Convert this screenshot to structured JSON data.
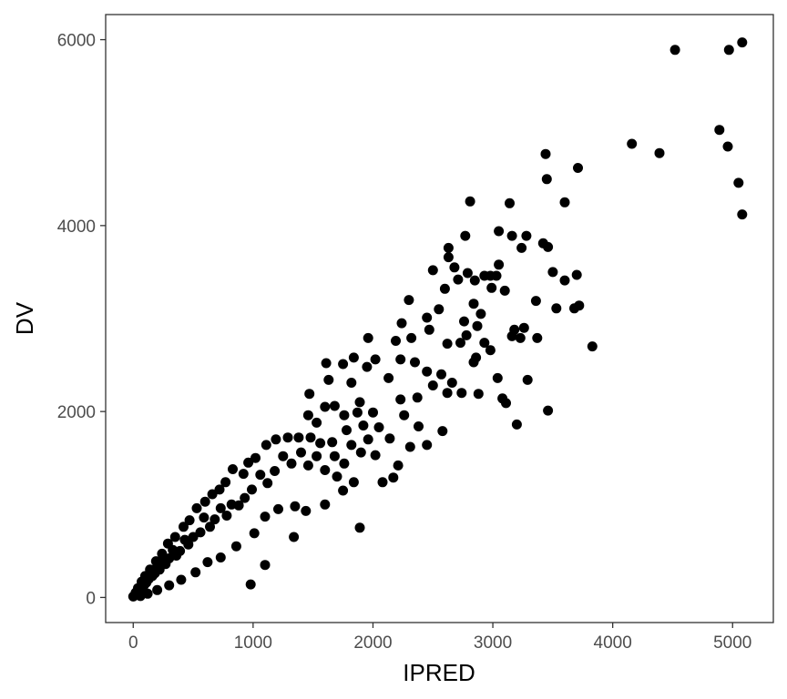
{
  "chart_data": {
    "type": "scatter",
    "xlabel": "IPRED",
    "ylabel": "DV",
    "xlim": [
      -230,
      5340
    ],
    "ylim": [
      -270,
      6270
    ],
    "x_ticks": [
      0,
      1000,
      2000,
      3000,
      4000,
      5000
    ],
    "y_ticks": [
      0,
      2000,
      4000,
      6000
    ],
    "x_tick_labels": [
      "0",
      "1000",
      "2000",
      "3000",
      "4000",
      "5000"
    ],
    "y_tick_labels": [
      "0",
      "2000",
      "4000",
      "6000"
    ],
    "grid": false,
    "legend": "none",
    "point_color": "#000000",
    "points": [
      [
        5080,
        5970
      ],
      [
        4520,
        5890
      ],
      [
        4970,
        5890
      ],
      [
        4890,
        5030
      ],
      [
        4960,
        4850
      ],
      [
        4160,
        4880
      ],
      [
        4390,
        4780
      ],
      [
        5050,
        4460
      ],
      [
        5080,
        4120
      ],
      [
        3440,
        4770
      ],
      [
        3450,
        4500
      ],
      [
        3710,
        4620
      ],
      [
        3600,
        4250
      ],
      [
        3140,
        4240
      ],
      [
        2810,
        4260
      ],
      [
        3050,
        3940
      ],
      [
        3160,
        3890
      ],
      [
        3280,
        3890
      ],
      [
        3240,
        3760
      ],
      [
        3420,
        3810
      ],
      [
        3460,
        3770
      ],
      [
        2630,
        3760
      ],
      [
        2630,
        3660
      ],
      [
        2770,
        3890
      ],
      [
        3700,
        3470
      ],
      [
        3500,
        3500
      ],
      [
        3600,
        3410
      ],
      [
        3530,
        3110
      ],
      [
        3680,
        3110
      ],
      [
        3720,
        3140
      ],
      [
        3360,
        3190
      ],
      [
        3830,
        2700
      ],
      [
        3460,
        2010
      ],
      [
        3200,
        1860
      ],
      [
        3290,
        2340
      ],
      [
        3040,
        2360
      ],
      [
        3080,
        2140
      ],
      [
        3110,
        2090
      ],
      [
        3050,
        3580
      ],
      [
        2980,
        3460
      ],
      [
        2930,
        3460
      ],
      [
        3030,
        3460
      ],
      [
        2990,
        3330
      ],
      [
        3100,
        3300
      ],
      [
        3180,
        2880
      ],
      [
        3160,
        2810
      ],
      [
        3260,
        2900
      ],
      [
        3230,
        2790
      ],
      [
        3370,
        2790
      ],
      [
        2850,
        3410
      ],
      [
        2710,
        3420
      ],
      [
        2790,
        3490
      ],
      [
        2680,
        3550
      ],
      [
        2500,
        3520
      ],
      [
        2300,
        3200
      ],
      [
        2450,
        3010
      ],
      [
        2550,
        3100
      ],
      [
        2600,
        3320
      ],
      [
        2760,
        2970
      ],
      [
        2840,
        3160
      ],
      [
        2900,
        3050
      ],
      [
        2870,
        2920
      ],
      [
        2930,
        2740
      ],
      [
        2980,
        2660
      ],
      [
        2860,
        2580
      ],
      [
        2730,
        2740
      ],
      [
        2840,
        2530
      ],
      [
        2780,
        2820
      ],
      [
        2620,
        2730
      ],
      [
        2470,
        2880
      ],
      [
        2320,
        2790
      ],
      [
        2240,
        2950
      ],
      [
        2190,
        2760
      ],
      [
        2230,
        2560
      ],
      [
        2350,
        2530
      ],
      [
        2450,
        2430
      ],
      [
        2570,
        2400
      ],
      [
        2660,
        2310
      ],
      [
        2740,
        2200
      ],
      [
        2880,
        2190
      ],
      [
        2620,
        2200
      ],
      [
        2500,
        2280
      ],
      [
        2370,
        2150
      ],
      [
        2230,
        2130
      ],
      [
        2260,
        1960
      ],
      [
        2380,
        1840
      ],
      [
        2580,
        1790
      ],
      [
        2310,
        1620
      ],
      [
        2450,
        1640
      ],
      [
        2210,
        1420
      ],
      [
        2080,
        1240
      ],
      [
        2170,
        1290
      ],
      [
        2020,
        1530
      ],
      [
        2140,
        1710
      ],
      [
        2050,
        1830
      ],
      [
        2000,
        1990
      ],
      [
        2130,
        2360
      ],
      [
        2020,
        2560
      ],
      [
        1960,
        2790
      ],
      [
        1950,
        2480
      ],
      [
        1840,
        2580
      ],
      [
        1820,
        2310
      ],
      [
        1750,
        2510
      ],
      [
        1630,
        2340
      ],
      [
        1610,
        2520
      ],
      [
        1470,
        2190
      ],
      [
        1890,
        2100
      ],
      [
        1760,
        1960
      ],
      [
        1680,
        2060
      ],
      [
        1600,
        2050
      ],
      [
        1530,
        1880
      ],
      [
        1460,
        1960
      ],
      [
        1380,
        1720
      ],
      [
        1290,
        1720
      ],
      [
        1190,
        1700
      ],
      [
        1110,
        1640
      ],
      [
        1020,
        1500
      ],
      [
        960,
        1450
      ],
      [
        920,
        1330
      ],
      [
        830,
        1380
      ],
      [
        770,
        1240
      ],
      [
        720,
        1160
      ],
      [
        660,
        1110
      ],
      [
        600,
        1030
      ],
      [
        530,
        960
      ],
      [
        470,
        830
      ],
      [
        420,
        760
      ],
      [
        350,
        650
      ],
      [
        290,
        580
      ],
      [
        240,
        470
      ],
      [
        190,
        390
      ],
      [
        140,
        300
      ],
      [
        100,
        230
      ],
      [
        70,
        170
      ],
      [
        40,
        100
      ],
      [
        20,
        50
      ],
      [
        10,
        20
      ],
      [
        0,
        10
      ],
      [
        1890,
        750
      ],
      [
        1600,
        1000
      ],
      [
        1750,
        1150
      ],
      [
        1840,
        1240
      ],
      [
        1700,
        1300
      ],
      [
        1440,
        930
      ],
      [
        1350,
        980
      ],
      [
        1340,
        650
      ],
      [
        1100,
        350
      ],
      [
        980,
        140
      ],
      [
        1100,
        870
      ],
      [
        1210,
        950
      ],
      [
        1010,
        690
      ],
      [
        860,
        550
      ],
      [
        730,
        430
      ],
      [
        620,
        380
      ],
      [
        520,
        270
      ],
      [
        400,
        190
      ],
      [
        300,
        130
      ],
      [
        200,
        80
      ],
      [
        120,
        40
      ],
      [
        60,
        15
      ],
      [
        1460,
        1420
      ],
      [
        1530,
        1520
      ],
      [
        1600,
        1370
      ],
      [
        1680,
        1520
      ],
      [
        1760,
        1440
      ],
      [
        1820,
        1640
      ],
      [
        1900,
        1560
      ],
      [
        1960,
        1700
      ],
      [
        1920,
        1850
      ],
      [
        1870,
        1990
      ],
      [
        1780,
        1800
      ],
      [
        1660,
        1670
      ],
      [
        1560,
        1660
      ],
      [
        1480,
        1720
      ],
      [
        1400,
        1560
      ],
      [
        1320,
        1440
      ],
      [
        1250,
        1520
      ],
      [
        1180,
        1360
      ],
      [
        1120,
        1230
      ],
      [
        1060,
        1320
      ],
      [
        990,
        1160
      ],
      [
        930,
        1070
      ],
      [
        880,
        990
      ],
      [
        820,
        1000
      ],
      [
        780,
        880
      ],
      [
        730,
        960
      ],
      [
        680,
        840
      ],
      [
        640,
        760
      ],
      [
        590,
        860
      ],
      [
        560,
        700
      ],
      [
        500,
        650
      ],
      [
        460,
        570
      ],
      [
        430,
        620
      ],
      [
        390,
        500
      ],
      [
        360,
        450
      ],
      [
        330,
        510
      ],
      [
        300,
        420
      ],
      [
        270,
        360
      ],
      [
        250,
        410
      ],
      [
        220,
        300
      ],
      [
        200,
        330
      ],
      [
        180,
        260
      ],
      [
        160,
        230
      ],
      [
        130,
        200
      ],
      [
        110,
        160
      ],
      [
        90,
        130
      ],
      [
        80,
        110
      ],
      [
        60,
        90
      ],
      [
        50,
        60
      ],
      [
        30,
        40
      ]
    ]
  }
}
